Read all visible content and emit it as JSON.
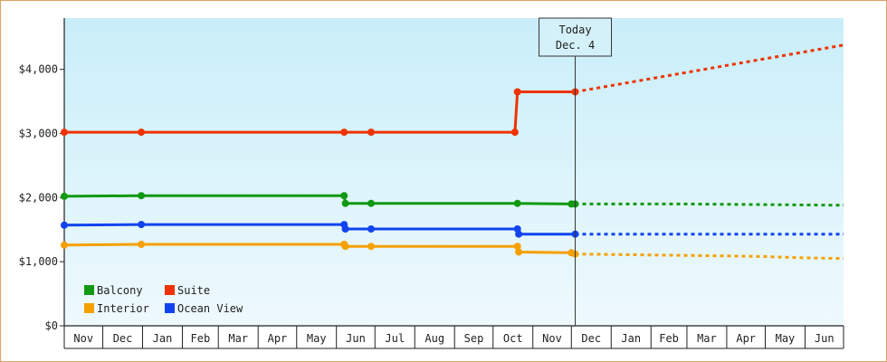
{
  "chart_data": {
    "type": "line",
    "title": "",
    "xlabel": "",
    "ylabel": "",
    "ylim": [
      0,
      4800
    ],
    "y_ticks": [
      {
        "value": 0,
        "label": "$0"
      },
      {
        "value": 1000,
        "label": "$1,000"
      },
      {
        "value": 2000,
        "label": "$2,000"
      },
      {
        "value": 3000,
        "label": "$3,000"
      },
      {
        "value": 4000,
        "label": "$4,000"
      }
    ],
    "x_range": [
      "2024-11-01",
      "2026-07-01"
    ],
    "month_ticks": [
      {
        "date": "2024-11-01",
        "label": "Nov"
      },
      {
        "date": "2024-12-01",
        "label": "Dec"
      },
      {
        "date": "2025-01-01",
        "label": "Jan"
      },
      {
        "date": "2025-02-01",
        "label": "Feb"
      },
      {
        "date": "2025-03-01",
        "label": "Mar"
      },
      {
        "date": "2025-04-01",
        "label": "Apr"
      },
      {
        "date": "2025-05-01",
        "label": "May"
      },
      {
        "date": "2025-06-01",
        "label": "Jun"
      },
      {
        "date": "2025-07-01",
        "label": "Jul"
      },
      {
        "date": "2025-08-01",
        "label": "Aug"
      },
      {
        "date": "2025-09-01",
        "label": "Sep"
      },
      {
        "date": "2025-10-01",
        "label": "Oct"
      },
      {
        "date": "2025-11-01",
        "label": "Nov"
      },
      {
        "date": "2025-12-01",
        "label": "Dec"
      },
      {
        "date": "2026-01-01",
        "label": "Jan"
      },
      {
        "date": "2026-02-01",
        "label": "Feb"
      },
      {
        "date": "2026-03-01",
        "label": "Mar"
      },
      {
        "date": "2026-04-01",
        "label": "Apr"
      },
      {
        "date": "2026-05-01",
        "label": "May"
      },
      {
        "date": "2026-06-01",
        "label": "Jun"
      },
      {
        "date": "2026-07-01",
        "label": ""
      }
    ],
    "today": {
      "date": "2025-12-04",
      "label_line1": "Today",
      "label_line2": "Dec. 4"
    },
    "series": [
      {
        "name": "Suite",
        "color": "#ee3300",
        "points": [
          {
            "date": "2024-11-01",
            "value": 3020
          },
          {
            "date": "2024-12-31",
            "value": 3020
          },
          {
            "date": "2025-06-07",
            "value": 3020
          },
          {
            "date": "2025-06-28",
            "value": 3020
          },
          {
            "date": "2025-10-18",
            "value": 3020
          },
          {
            "date": "2025-10-20",
            "value": 3650
          },
          {
            "date": "2025-12-04",
            "value": 3650
          }
        ],
        "forecast": [
          {
            "date": "2025-12-04",
            "value": 3650
          },
          {
            "date": "2026-07-01",
            "value": 4380
          }
        ]
      },
      {
        "name": "Balcony",
        "color": "#119911",
        "points": [
          {
            "date": "2024-11-01",
            "value": 2020
          },
          {
            "date": "2024-12-31",
            "value": 2030
          },
          {
            "date": "2025-06-07",
            "value": 2030
          },
          {
            "date": "2025-06-08",
            "value": 1910
          },
          {
            "date": "2025-06-28",
            "value": 1910
          },
          {
            "date": "2025-10-20",
            "value": 1910
          },
          {
            "date": "2025-12-01",
            "value": 1900
          },
          {
            "date": "2025-12-04",
            "value": 1900
          }
        ],
        "forecast": [
          {
            "date": "2025-12-04",
            "value": 1900
          },
          {
            "date": "2026-03-01",
            "value": 1900
          },
          {
            "date": "2026-07-01",
            "value": 1880
          }
        ]
      },
      {
        "name": "Ocean View",
        "color": "#1144ee",
        "points": [
          {
            "date": "2024-11-01",
            "value": 1570
          },
          {
            "date": "2024-12-31",
            "value": 1580
          },
          {
            "date": "2025-06-07",
            "value": 1580
          },
          {
            "date": "2025-06-08",
            "value": 1510
          },
          {
            "date": "2025-06-28",
            "value": 1510
          },
          {
            "date": "2025-10-20",
            "value": 1510
          },
          {
            "date": "2025-10-21",
            "value": 1430
          },
          {
            "date": "2025-12-04",
            "value": 1430
          }
        ],
        "forecast": [
          {
            "date": "2025-12-04",
            "value": 1430
          },
          {
            "date": "2026-07-01",
            "value": 1430
          }
        ]
      },
      {
        "name": "Interior",
        "color": "#f5a000",
        "points": [
          {
            "date": "2024-11-01",
            "value": 1260
          },
          {
            "date": "2024-12-31",
            "value": 1270
          },
          {
            "date": "2025-06-07",
            "value": 1270
          },
          {
            "date": "2025-06-08",
            "value": 1240
          },
          {
            "date": "2025-06-28",
            "value": 1240
          },
          {
            "date": "2025-10-20",
            "value": 1240
          },
          {
            "date": "2025-10-21",
            "value": 1150
          },
          {
            "date": "2025-12-01",
            "value": 1140
          },
          {
            "date": "2025-12-04",
            "value": 1120
          }
        ],
        "forecast": [
          {
            "date": "2025-12-04",
            "value": 1120
          },
          {
            "date": "2026-04-01",
            "value": 1090
          },
          {
            "date": "2026-05-01",
            "value": 1080
          },
          {
            "date": "2026-06-01",
            "value": 1060
          },
          {
            "date": "2026-07-01",
            "value": 1050
          }
        ]
      }
    ],
    "legend": {
      "placement": "bottom-left",
      "items": [
        {
          "label": "Balcony",
          "color": "#119911"
        },
        {
          "label": "Suite",
          "color": "#ee3300"
        },
        {
          "label": "Interior",
          "color": "#f5a000"
        },
        {
          "label": "Ocean View",
          "color": "#1144ee"
        }
      ]
    },
    "colors": {
      "background_top": "#c9eef9",
      "background_bottom": "#eef9fd",
      "frame_border": "#e0a060"
    }
  }
}
